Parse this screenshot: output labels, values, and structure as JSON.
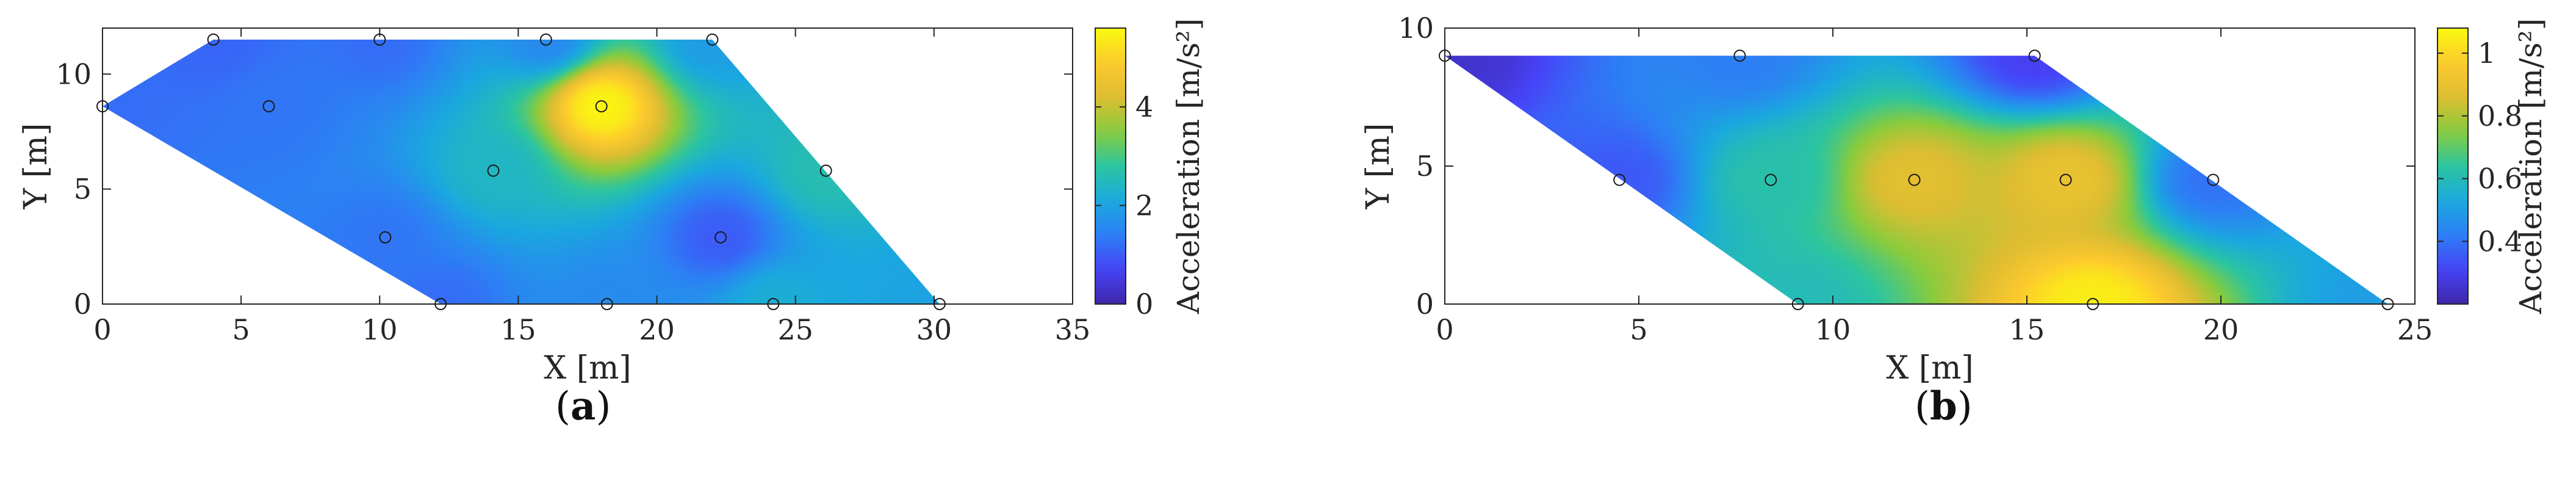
{
  "chart_data": [
    {
      "type": "heatmap",
      "panel_label": "(a)",
      "panel_letter": "a",
      "xlabel": "X [m]",
      "ylabel": "Y [m]",
      "xlim": [
        0,
        35
      ],
      "ylim": [
        0,
        12
      ],
      "xticks": [
        0,
        5,
        10,
        15,
        20,
        25,
        30,
        35
      ],
      "yticks": [
        0,
        5,
        10
      ],
      "colorbar": {
        "label": "Acceleration [m/s²]",
        "min": 0,
        "max": 5.6,
        "ticks": [
          0,
          2,
          4
        ]
      },
      "colormap": [
        "#3e26a8",
        "#4743f8",
        "#2d7ff5",
        "#1aa9de",
        "#2cc5a0",
        "#88cc3d",
        "#ddbd32",
        "#fdca2e",
        "#f9fb0e"
      ],
      "domain_polygon": [
        [
          0,
          8.6
        ],
        [
          4,
          11.5
        ],
        [
          22,
          11.5
        ],
        [
          30.2,
          0
        ],
        [
          12.2,
          0
        ]
      ],
      "sensors": [
        {
          "x": 0,
          "y": 8.6,
          "value": 1.2
        },
        {
          "x": 4,
          "y": 11.5,
          "value": 1.1
        },
        {
          "x": 10,
          "y": 11.5,
          "value": 1.2
        },
        {
          "x": 16,
          "y": 11.5,
          "value": 1.6
        },
        {
          "x": 22,
          "y": 11.5,
          "value": 1.9
        },
        {
          "x": 6,
          "y": 8.6,
          "value": 1.3
        },
        {
          "x": 18,
          "y": 8.6,
          "value": 5.5
        },
        {
          "x": 14.1,
          "y": 5.8,
          "value": 2.4
        },
        {
          "x": 26.1,
          "y": 5.8,
          "value": 2.6
        },
        {
          "x": 10.2,
          "y": 2.9,
          "value": 1.3
        },
        {
          "x": 22.3,
          "y": 2.9,
          "value": 1.0
        },
        {
          "x": 12.2,
          "y": 0,
          "value": 1.2
        },
        {
          "x": 18.2,
          "y": 0,
          "value": 1.6
        },
        {
          "x": 24.2,
          "y": 0,
          "value": 2.2
        },
        {
          "x": 30.2,
          "y": 0,
          "value": 2.0
        }
      ]
    },
    {
      "type": "heatmap",
      "panel_label": "(b)",
      "panel_letter": "b",
      "xlabel": "X [m]",
      "ylabel": "Y [m]",
      "xlim": [
        0,
        25
      ],
      "ylim": [
        0,
        10
      ],
      "xticks": [
        0,
        5,
        10,
        15,
        20,
        25
      ],
      "yticks": [
        0,
        5,
        10
      ],
      "colorbar": {
        "label": "Acceleration [m/s²]",
        "min": 0.2,
        "max": 1.08,
        "ticks": [
          0.4,
          0.6,
          0.8,
          1
        ]
      },
      "colormap": [
        "#3e26a8",
        "#4743f8",
        "#2d7ff5",
        "#1aa9de",
        "#2cc5a0",
        "#88cc3d",
        "#ddbd32",
        "#fdca2e",
        "#f9fb0e"
      ],
      "domain_polygon": [
        [
          0,
          9
        ],
        [
          15.2,
          9
        ],
        [
          24.3,
          0
        ],
        [
          9.1,
          0
        ]
      ],
      "sensors": [
        {
          "x": 0,
          "y": 9,
          "value": 0.25
        },
        {
          "x": 7.6,
          "y": 9,
          "value": 0.42
        },
        {
          "x": 15.2,
          "y": 9,
          "value": 0.3
        },
        {
          "x": 4.5,
          "y": 4.5,
          "value": 0.35
        },
        {
          "x": 8.4,
          "y": 4.5,
          "value": 0.62
        },
        {
          "x": 12.1,
          "y": 4.5,
          "value": 0.88
        },
        {
          "x": 16,
          "y": 4.5,
          "value": 0.9
        },
        {
          "x": 19.8,
          "y": 4.5,
          "value": 0.4
        },
        {
          "x": 9.1,
          "y": 0,
          "value": 0.6
        },
        {
          "x": 16.7,
          "y": 0,
          "value": 1.05
        },
        {
          "x": 24.3,
          "y": 0,
          "value": 0.5
        }
      ]
    }
  ]
}
